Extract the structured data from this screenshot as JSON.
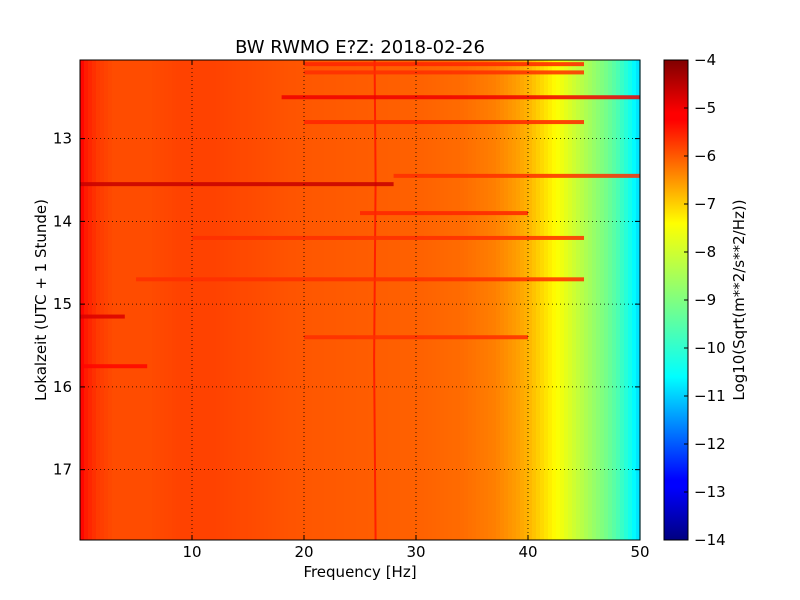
{
  "chart_data": {
    "type": "heatmap",
    "title": "BW RWMO E?Z: 2018-02-26",
    "xlabel": "Frequency [Hz]",
    "ylabel": "Lokalzeit (UTC + 1 Stunde)",
    "xlim": [
      0,
      50
    ],
    "ylim": [
      12.05,
      17.85
    ],
    "y_inverted": true,
    "x_ticks": [
      10,
      20,
      30,
      40,
      50
    ],
    "y_ticks": [
      13,
      14,
      15,
      16,
      17
    ],
    "grid": true,
    "colormap": "jet",
    "colorbar": {
      "label": "Log10(Sqrt(m**2/s**2/Hz))",
      "range": [
        -14,
        -4
      ],
      "ticks": [
        -4,
        -5,
        -6,
        -7,
        -8,
        -9,
        -10,
        -11,
        -12,
        -13,
        -14
      ]
    },
    "frequency_profile": {
      "frequency_hz": [
        0,
        0.5,
        1.5,
        3,
        6,
        9,
        12,
        16,
        20,
        25,
        30,
        34,
        37,
        39,
        40,
        41,
        42,
        43,
        44,
        45,
        46,
        47,
        48,
        49,
        50
      ],
      "level": [
        -5.2,
        -5.5,
        -5.8,
        -6.0,
        -6.0,
        -5.9,
        -5.9,
        -6.0,
        -6.1,
        -6.15,
        -6.2,
        -6.3,
        -6.5,
        -6.8,
        -7.0,
        -7.3,
        -7.6,
        -7.9,
        -8.2,
        -8.5,
        -8.8,
        -9.1,
        -9.5,
        -10.0,
        -10.6
      ]
    },
    "annotations": [
      {
        "type": "line",
        "x": 26.3,
        "level": -5.3,
        "description": "narrow spectral line near 26 Hz"
      },
      {
        "type": "band",
        "time": 12.5,
        "x_range": [
          18,
          50
        ],
        "level": -5.1
      },
      {
        "type": "band",
        "time": 12.1,
        "x_range": [
          20,
          45
        ],
        "level": -5.6
      },
      {
        "type": "band",
        "time": 12.2,
        "x_range": [
          20,
          45
        ],
        "level": -5.7
      },
      {
        "type": "band",
        "time": 12.8,
        "x_range": [
          20,
          45
        ],
        "level": -5.6
      },
      {
        "type": "band",
        "time": 13.55,
        "x_range": [
          0,
          28
        ],
        "level": -4.7
      },
      {
        "type": "band",
        "time": 13.45,
        "x_range": [
          28,
          50
        ],
        "level": -5.7
      },
      {
        "type": "band",
        "time": 13.9,
        "x_range": [
          25,
          40
        ],
        "level": -5.6
      },
      {
        "type": "band",
        "time": 14.2,
        "x_range": [
          10,
          45
        ],
        "level": -5.7
      },
      {
        "type": "band",
        "time": 14.7,
        "x_range": [
          5,
          45
        ],
        "level": -5.7
      },
      {
        "type": "band",
        "time": 15.15,
        "x_range": [
          0,
          4
        ],
        "level": -4.9
      },
      {
        "type": "band",
        "time": 15.4,
        "x_range": [
          20,
          40
        ],
        "level": -5.7
      },
      {
        "type": "band",
        "time": 15.75,
        "x_range": [
          0,
          6
        ],
        "level": -5.3
      }
    ]
  }
}
